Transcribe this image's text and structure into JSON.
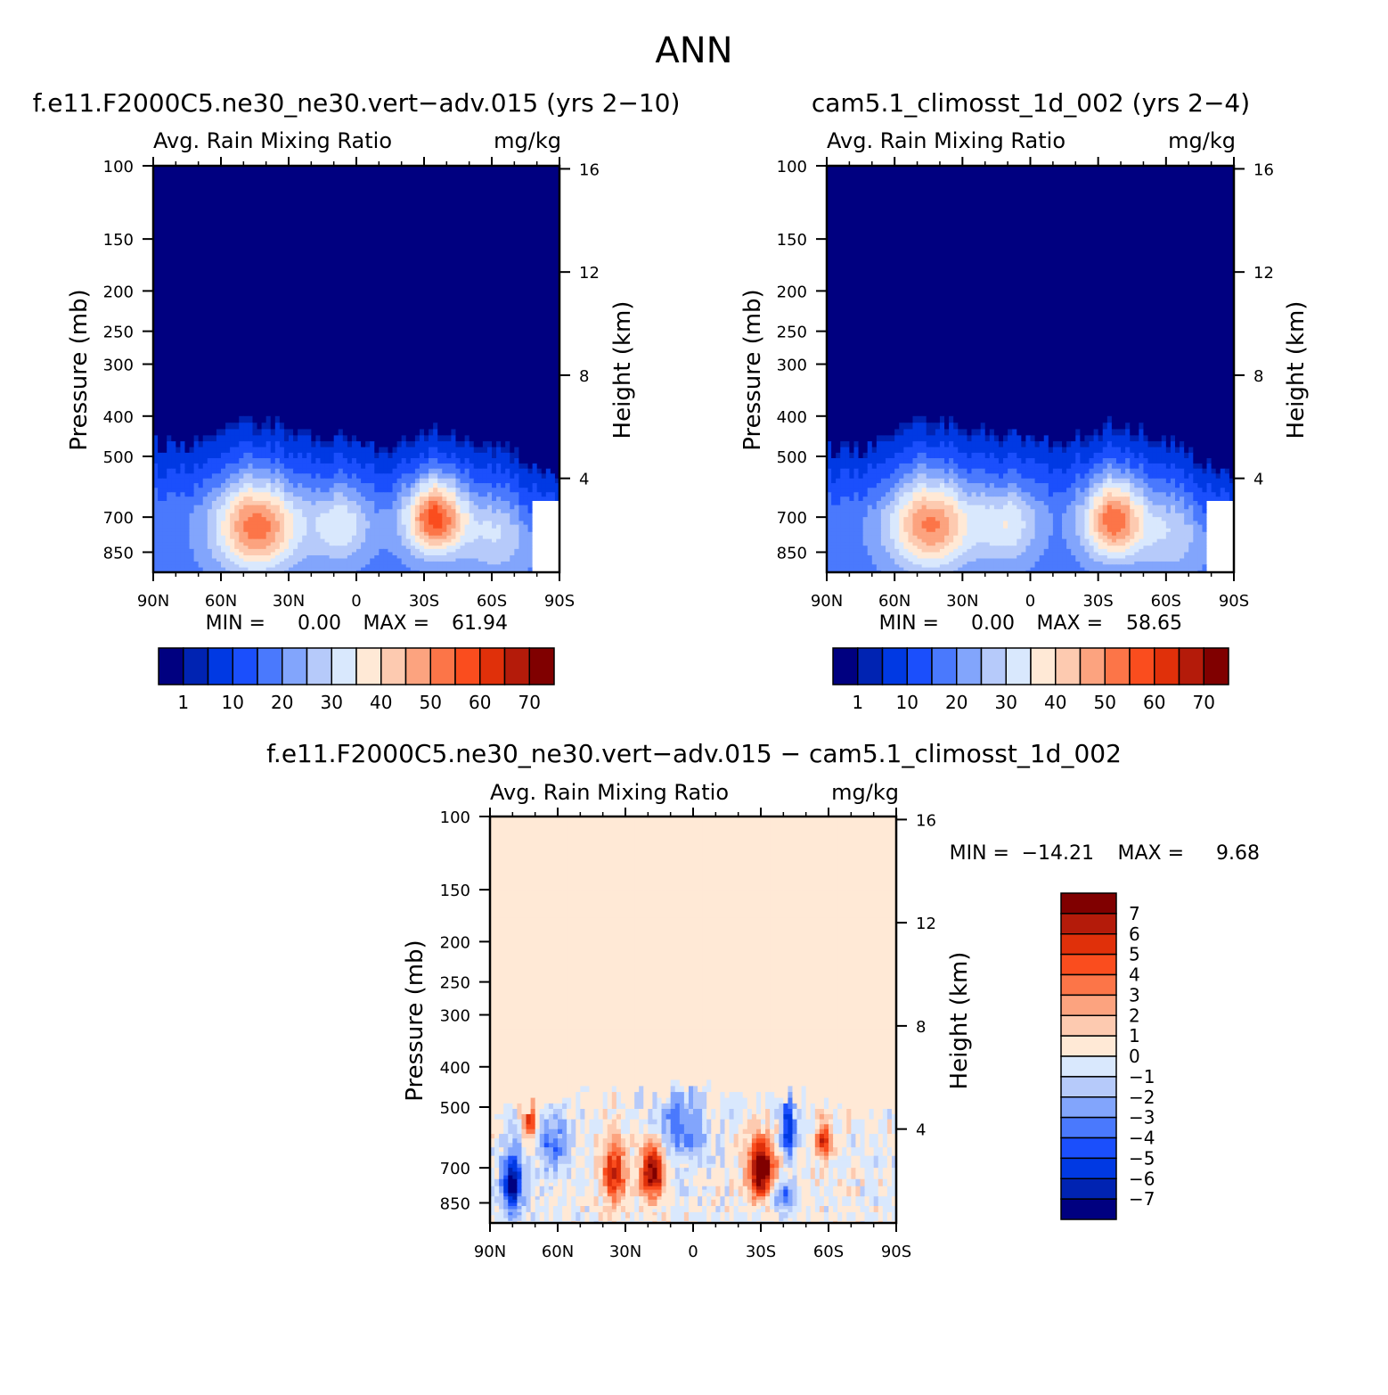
{
  "figure_title": "ANN",
  "colors": {
    "abs_palette": [
      "#000080",
      "#0023b2",
      "#0039e3",
      "#1b4ffc",
      "#4a79fd",
      "#82a5fc",
      "#b6cafa",
      "#d9e8fd",
      "#ffe9d6",
      "#fdcab0",
      "#fca37f",
      "#fc7548",
      "#fa4d1e",
      "#e0300a",
      "#b41b0a",
      "#800000"
    ],
    "diff_palette": [
      "#000080",
      "#0023b2",
      "#0039e3",
      "#1b4ffc",
      "#4a79fd",
      "#82a5fc",
      "#b6cafa",
      "#d9e8fd",
      "#ffe9d6",
      "#fdcab0",
      "#fca37f",
      "#fc7548",
      "#fa4d1e",
      "#e0300a",
      "#b41b0a",
      "#800000"
    ],
    "missing": "#ffffff"
  },
  "chart_data": [
    {
      "type": "heatmap",
      "panel": "test",
      "title": "f.e11.F2000C5.ne30_ne30.vert−adv.015 (yrs 2−10)",
      "field_name": "Avg. Rain Mixing Ratio",
      "units": "mg/kg",
      "ylabel": "Pressure (mb)",
      "ylabel_right": "Height (km)",
      "x_ticks": [
        "90N",
        "60N",
        "30N",
        "0",
        "30S",
        "60S",
        "90S"
      ],
      "y_ticks": [
        "100",
        "150",
        "200",
        "250",
        "300",
        "400",
        "500",
        "700",
        "850"
      ],
      "y_ticks_right": [
        "16",
        "12",
        "8",
        "4"
      ],
      "ylim": [
        100,
        950
      ],
      "xlim": [
        90,
        -90
      ],
      "min_label": "MIN =",
      "min_value": "0.00",
      "max_label": "MAX =",
      "max_value": "61.94",
      "colorbar_labels": [
        "1",
        "10",
        "20",
        "30",
        "40",
        "50",
        "60",
        "70"
      ],
      "levels": [
        0.5,
        1,
        5,
        10,
        15,
        20,
        25,
        30,
        35,
        40,
        45,
        50,
        55,
        60,
        65,
        70
      ],
      "blobs": [
        {
          "lat": 44,
          "p": 740,
          "amp": 35,
          "slat": 18,
          "sp": 190
        },
        {
          "lat": 7,
          "p": 730,
          "amp": 16,
          "slat": 13,
          "sp": 160
        },
        {
          "lat": -35,
          "p": 700,
          "amp": 40,
          "slat": 13,
          "sp": 150
        },
        {
          "lat": -62,
          "p": 760,
          "amp": 12,
          "slat": 14,
          "sp": 200
        }
      ],
      "base_amp": 13,
      "top_mb": [
        455,
        455,
        470,
        490,
        560
      ]
    },
    {
      "type": "heatmap",
      "panel": "control",
      "title": "cam5.1_climosst_1d_002 (yrs 2−4)",
      "field_name": "Avg. Rain Mixing Ratio",
      "units": "mg/kg",
      "ylabel": "Pressure (mb)",
      "ylabel_right": "Height (km)",
      "x_ticks": [
        "90N",
        "60N",
        "30N",
        "0",
        "30S",
        "60S",
        "90S"
      ],
      "y_ticks": [
        "100",
        "150",
        "200",
        "250",
        "300",
        "400",
        "500",
        "700",
        "850"
      ],
      "y_ticks_right": [
        "16",
        "12",
        "8",
        "4"
      ],
      "ylim": [
        100,
        950
      ],
      "xlim": [
        90,
        -90
      ],
      "min_label": "MIN =",
      "min_value": "0.00",
      "max_label": "MAX =",
      "max_value": "58.65",
      "colorbar_labels": [
        "1",
        "10",
        "20",
        "30",
        "40",
        "50",
        "60",
        "70"
      ],
      "levels": [
        0.5,
        1,
        5,
        10,
        15,
        20,
        25,
        30,
        35,
        40,
        45,
        50,
        55,
        60,
        65,
        70
      ],
      "blobs": [
        {
          "lat": 44,
          "p": 730,
          "amp": 33,
          "slat": 18,
          "sp": 190
        },
        {
          "lat": 10,
          "p": 730,
          "amp": 16,
          "slat": 13,
          "sp": 160
        },
        {
          "lat": -37,
          "p": 710,
          "amp": 36,
          "slat": 13,
          "sp": 160
        },
        {
          "lat": -62,
          "p": 760,
          "amp": 11,
          "slat": 14,
          "sp": 200
        }
      ],
      "base_amp": 13,
      "top_mb": [
        470,
        460,
        455,
        465,
        560
      ]
    },
    {
      "type": "heatmap",
      "panel": "difference",
      "title": "f.e11.F2000C5.ne30_ne30.vert−adv.015 − cam5.1_climosst_1d_002",
      "field_name": "Avg. Rain Mixing Ratio",
      "units": "mg/kg",
      "ylabel": "Pressure (mb)",
      "ylabel_right": "Height (km)",
      "x_ticks": [
        "90N",
        "60N",
        "30N",
        "0",
        "30S",
        "60S",
        "90S"
      ],
      "y_ticks": [
        "100",
        "150",
        "200",
        "250",
        "300",
        "400",
        "500",
        "700",
        "850"
      ],
      "y_ticks_right": [
        "16",
        "12",
        "8",
        "4"
      ],
      "ylim": [
        100,
        950
      ],
      "xlim": [
        90,
        -90
      ],
      "min_label": "MIN =",
      "min_value": "−14.21",
      "max_label": "MAX =",
      "max_value": "9.68",
      "colorbar_labels": [
        "7",
        "6",
        "5",
        "4",
        "3",
        "2",
        "1",
        "0",
        "−1",
        "−2",
        "−3",
        "−4",
        "−5",
        "−6",
        "−7"
      ],
      "levels": [
        -7,
        -6,
        -5,
        -4,
        -3,
        -2,
        -1,
        0,
        1,
        2,
        3,
        4,
        5,
        6,
        7
      ],
      "blobs": [
        {
          "lat": 35,
          "p": 720,
          "amp": 6,
          "slat": 5,
          "sp": 130
        },
        {
          "lat": 18,
          "p": 720,
          "amp": 8,
          "slat": 5,
          "sp": 110
        },
        {
          "lat": -30,
          "p": 710,
          "amp": 9,
          "slat": 6,
          "sp": 110
        },
        {
          "lat": -58,
          "p": 600,
          "amp": 6,
          "slat": 3,
          "sp": 60
        },
        {
          "lat": 72,
          "p": 540,
          "amp": 5,
          "slat": 3,
          "sp": 60
        },
        {
          "lat": 80,
          "p": 760,
          "amp": -7,
          "slat": 5,
          "sp": 130
        },
        {
          "lat": 62,
          "p": 620,
          "amp": -4,
          "slat": 6,
          "sp": 100
        },
        {
          "lat": -42,
          "p": 560,
          "amp": -6,
          "slat": 3,
          "sp": 90
        },
        {
          "lat": -40,
          "p": 820,
          "amp": -4,
          "slat": 5,
          "sp": 70
        },
        {
          "lat": 5,
          "p": 560,
          "amp": -3,
          "slat": 12,
          "sp": 120
        }
      ],
      "top_mb": [
        500,
        470,
        450,
        470,
        520
      ]
    }
  ]
}
